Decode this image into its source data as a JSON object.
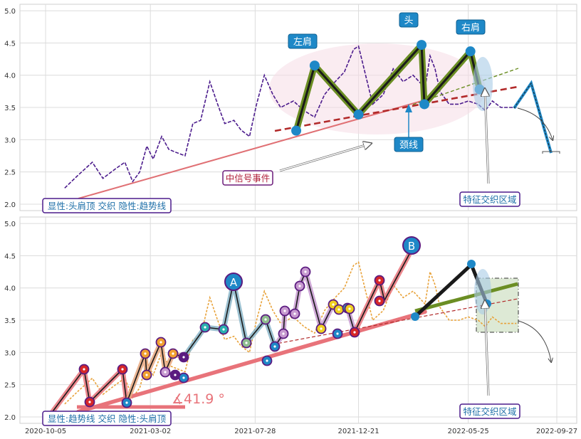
{
  "chart_data": [
    {
      "type": "line",
      "panel": "top",
      "x_ticks": [
        "2020-10-05",
        "2021-03-02",
        "2021-07-28",
        "2021-12-21",
        "2022-05-25",
        "2022-09-27"
      ],
      "ylim": [
        1.9,
        5.1
      ],
      "y_ticks": [
        "2.0",
        "2.5",
        "3.0",
        "3.5",
        "4.0",
        "4.5",
        "5.0"
      ],
      "grid": true,
      "price": {
        "x": [
          "2020-11-01",
          "2020-11-20",
          "2020-12-10",
          "2020-12-25",
          "2021-01-12",
          "2021-01-25",
          "2021-02-05",
          "2021-02-15",
          "2021-02-25",
          "2021-03-06",
          "2021-03-18",
          "2021-03-28",
          "2021-04-08",
          "2021-04-20",
          "2021-05-01",
          "2021-05-12",
          "2021-05-25",
          "2021-06-05",
          "2021-06-15",
          "2021-06-28",
          "2021-07-08",
          "2021-07-20",
          "2021-07-30",
          "2021-08-10",
          "2021-08-22",
          "2021-09-02",
          "2021-09-20",
          "2021-10-05",
          "2021-10-20",
          "2021-11-03",
          "2021-11-18",
          "2021-12-01",
          "2021-12-14",
          "2021-12-21",
          "2022-01-10",
          "2022-01-25",
          "2022-02-08",
          "2022-02-22",
          "2022-03-08",
          "2022-03-25",
          "2022-04-01",
          "2022-04-08",
          "2022-04-15",
          "2022-04-28",
          "2022-05-12",
          "2022-05-25",
          "2022-06-08",
          "2022-06-18",
          "2022-06-28",
          "2022-07-10",
          "2022-07-22",
          "2022-08-01"
        ],
        "y": [
          2.25,
          2.45,
          2.65,
          2.4,
          2.55,
          2.65,
          2.35,
          2.5,
          2.9,
          2.7,
          3.05,
          2.85,
          2.8,
          2.75,
          3.25,
          3.3,
          3.9,
          3.55,
          3.25,
          3.3,
          3.15,
          3.05,
          3.55,
          4.0,
          3.7,
          3.5,
          3.6,
          3.45,
          3.35,
          3.7,
          3.9,
          4.05,
          4.4,
          4.45,
          3.55,
          3.7,
          4.1,
          3.9,
          4.0,
          3.8,
          4.3,
          4.1,
          3.75,
          3.55,
          3.55,
          3.6,
          3.55,
          3.45,
          3.6,
          3.5,
          3.5,
          3.5
        ]
      },
      "pattern": {
        "name": "头肩顶",
        "points": [
          {
            "label": "",
            "x": "2021-09-24",
            "y": 3.14
          },
          {
            "label": "左肩",
            "x": "2021-10-20",
            "y": 4.15
          },
          {
            "label": "",
            "x": "2021-12-21",
            "y": 3.39
          },
          {
            "label": "头",
            "x": "2022-03-20",
            "y": 4.47
          },
          {
            "label": "",
            "x": "2022-03-24",
            "y": 3.55
          },
          {
            "label": "右肩",
            "x": "2022-05-28",
            "y": 4.37
          },
          {
            "label": "",
            "x": "2022-06-10",
            "y": 3.78
          }
        ]
      },
      "neckline_label": "颈线",
      "annotations": [
        "中信号事件",
        "特征交织区域"
      ],
      "footer_label": "显性:头肩顶 交织 隐性:趋势线",
      "projection": {
        "x": [
          "2022-07-05",
          "2022-07-15",
          "2022-08-01"
        ],
        "y": [
          3.45,
          3.9,
          2.8
        ]
      }
    },
    {
      "type": "line",
      "panel": "bottom",
      "x_ticks": [
        "2020-10-05",
        "2021-03-02",
        "2021-07-28",
        "2021-12-21",
        "2022-05-25",
        "2022-09-27"
      ],
      "ylim": [
        1.9,
        5.1
      ],
      "y_ticks": [
        "2.0",
        "2.5",
        "3.0",
        "3.5",
        "4.0",
        "4.5",
        "5.0"
      ],
      "grid": true,
      "trendline": {
        "x": [
          "2020-11-20",
          "2022-03-25"
        ],
        "y": [
          2.08,
          3.63
        ]
      },
      "angle_label": "∡41.9 °",
      "anchor_points": [
        {
          "label": "A",
          "x": "2021-07-30",
          "y": 4.1
        },
        {
          "label": "B",
          "x": "2022-03-25",
          "y": 4.6
        }
      ],
      "annotations": [
        "特征交织区域"
      ],
      "footer_label": "显性:趋势线 交织 隐性:头肩顶"
    }
  ]
}
